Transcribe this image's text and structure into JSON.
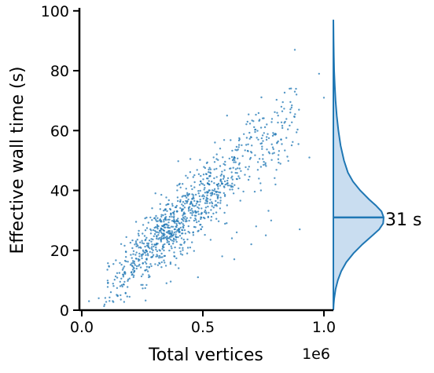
{
  "chart_data": {
    "type": "scatter",
    "xlabel": "Total vertices",
    "ylabel": "Effective wall time (s)",
    "x_offset_label": "1e6",
    "xlim": [
      -0.01,
      1.05
    ],
    "ylim": [
      0,
      101
    ],
    "x_ticks": [
      0.0,
      0.5,
      1.0
    ],
    "x_tick_labels": [
      "0.0",
      "0.5",
      "1.0"
    ],
    "y_ticks": [
      0,
      20,
      40,
      60,
      80,
      100
    ],
    "y_tick_labels": [
      "0",
      "20",
      "40",
      "60",
      "80",
      "100"
    ],
    "grid": false,
    "point_color": "#1f77b4",
    "points_note": "~1000 points, roughly linear: y ≈ 75*x (x in millions) with spread, plus sparse outliers",
    "outliers": [
      [
        0.88,
        87
      ],
      [
        0.98,
        79
      ],
      [
        1.0,
        71
      ],
      [
        0.88,
        73
      ],
      [
        0.94,
        51
      ],
      [
        0.8,
        42
      ],
      [
        0.74,
        40
      ],
      [
        0.55,
        35
      ],
      [
        0.64,
        26
      ],
      [
        0.72,
        28
      ],
      [
        0.63,
        17
      ],
      [
        0.7,
        22
      ],
      [
        0.48,
        11
      ],
      [
        0.58,
        18
      ],
      [
        0.62,
        24
      ],
      [
        0.76,
        25
      ],
      [
        0.35,
        9
      ],
      [
        0.16,
        5
      ],
      [
        0.07,
        4
      ],
      [
        0.03,
        3
      ],
      [
        0.12,
        6
      ],
      [
        0.9,
        27
      ],
      [
        0.6,
        65
      ],
      [
        0.55,
        56
      ],
      [
        0.4,
        14
      ]
    ],
    "trend": {
      "slope": 75,
      "intercept": 0,
      "sigma": 4.5
    },
    "marginal": {
      "type": "kde",
      "axis": "y",
      "fill": "#c6dbef",
      "line": "#1f77b4",
      "median": 31,
      "median_label": "31 s",
      "density": [
        [
          0,
          0.0
        ],
        [
          2,
          0.005
        ],
        [
          4,
          0.015
        ],
        [
          7,
          0.04
        ],
        [
          10,
          0.08
        ],
        [
          13,
          0.14
        ],
        [
          16,
          0.23
        ],
        [
          19,
          0.36
        ],
        [
          22,
          0.52
        ],
        [
          25,
          0.7
        ],
        [
          27,
          0.82
        ],
        [
          29,
          0.89
        ],
        [
          31,
          0.9
        ],
        [
          33,
          0.86
        ],
        [
          35,
          0.76
        ],
        [
          37,
          0.64
        ],
        [
          40,
          0.48
        ],
        [
          43,
          0.35
        ],
        [
          46,
          0.26
        ],
        [
          50,
          0.19
        ],
        [
          55,
          0.13
        ],
        [
          60,
          0.09
        ],
        [
          65,
          0.06
        ],
        [
          70,
          0.04
        ],
        [
          75,
          0.025
        ],
        [
          80,
          0.014
        ],
        [
          85,
          0.008
        ],
        [
          90,
          0.004
        ],
        [
          95,
          0.002
        ],
        [
          97,
          0.0
        ]
      ]
    }
  }
}
